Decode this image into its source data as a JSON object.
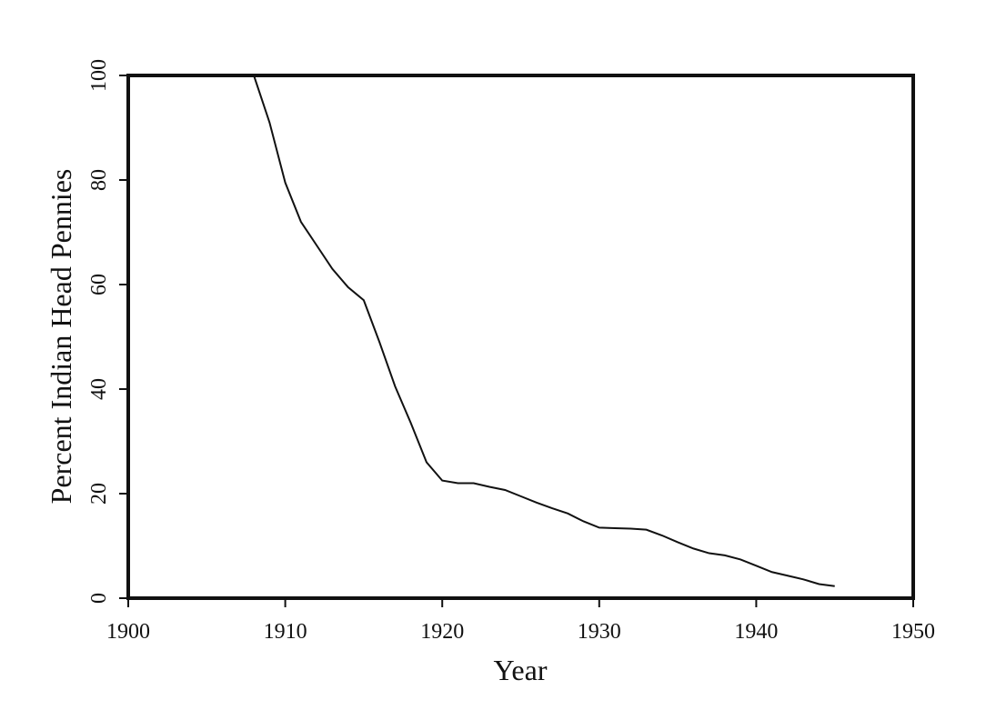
{
  "chart_data": {
    "type": "line",
    "xlabel": "Year",
    "ylabel": "Percent Indian Head Pennies",
    "x": [
      1908,
      1909,
      1910,
      1911,
      1912,
      1913,
      1914,
      1915,
      1916,
      1917,
      1918,
      1919,
      1920,
      1921,
      1922,
      1923,
      1924,
      1925,
      1926,
      1927,
      1928,
      1929,
      1930,
      1931,
      1932,
      1933,
      1934,
      1935,
      1936,
      1937,
      1938,
      1939,
      1940,
      1941,
      1942,
      1943,
      1944,
      1945
    ],
    "series": [
      {
        "name": "Percent",
        "color": "#111111",
        "values": [
          100,
          91,
          79.5,
          72,
          67.5,
          63,
          59.5,
          57,
          49,
          40.5,
          33.5,
          26,
          22.5,
          22,
          22,
          21.3,
          20.7,
          19.5,
          18.3,
          17.2,
          16.2,
          14.7,
          13.5,
          13.4,
          13.3,
          13.1,
          12,
          10.7,
          9.5,
          8.6,
          8.2,
          7.4,
          6.2,
          5,
          4.3,
          3.6,
          2.7,
          2.3
        ]
      }
    ],
    "xlim": [
      1900,
      1950
    ],
    "xticks": [
      1900,
      1910,
      1920,
      1930,
      1940,
      1950
    ],
    "ylim": [
      0,
      100
    ],
    "yticks": [
      0,
      20,
      40,
      60,
      80,
      100
    ]
  }
}
